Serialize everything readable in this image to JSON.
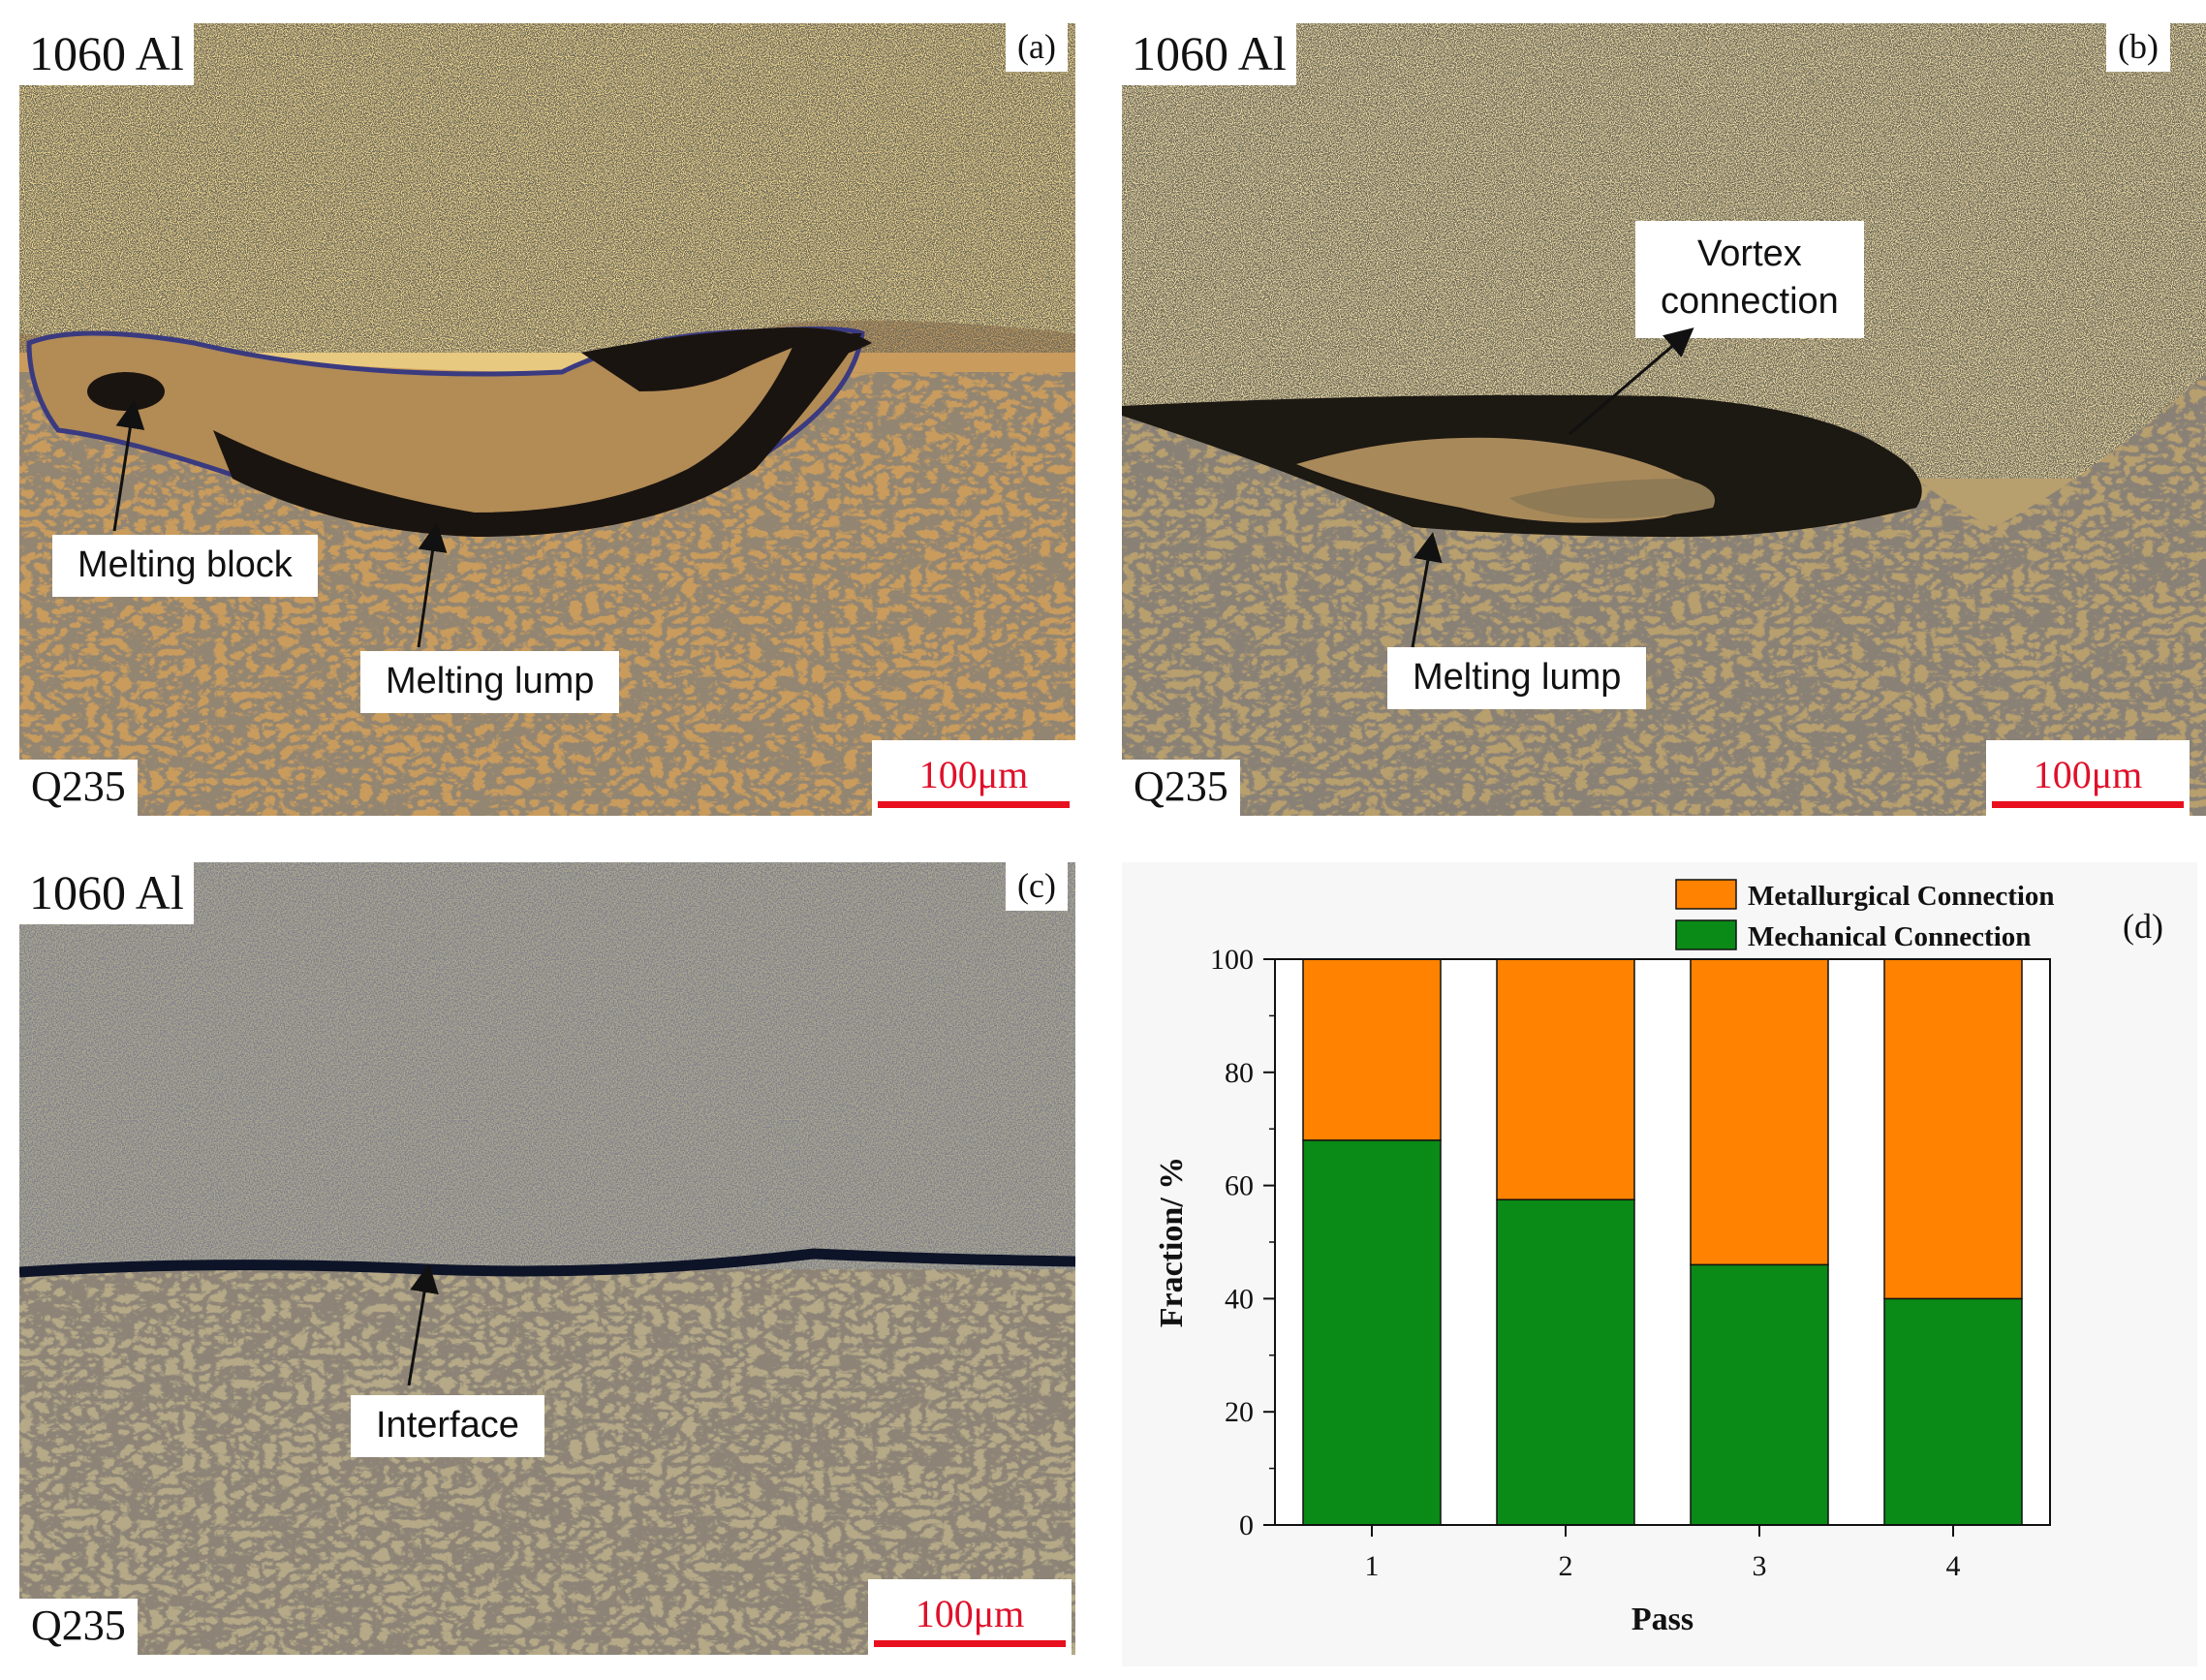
{
  "panels": {
    "a": {
      "letter": "(a)",
      "top_material": "1060 Al",
      "bottom_material": "Q235",
      "scale_bar": "100μm",
      "callouts": [
        "Melting block",
        "Melting lump"
      ]
    },
    "b": {
      "letter": "(b)",
      "top_material": "1060 Al",
      "bottom_material": "Q235",
      "scale_bar": "100μm",
      "callouts": [
        "Vortex",
        "connection",
        "Melting lump"
      ]
    },
    "c": {
      "letter": "(c)",
      "top_material": "1060 Al",
      "bottom_material": "Q235",
      "scale_bar": "100μm",
      "callouts": [
        "Interface"
      ]
    },
    "d": {
      "letter": "(d)"
    }
  },
  "colors": {
    "metallurgical": "#ff8200",
    "mechanical": "#0a8a16",
    "scale_bar": "#e8101e"
  },
  "chart_data": {
    "type": "bar",
    "stacked": true,
    "categories": [
      "1",
      "2",
      "3",
      "4"
    ],
    "series": [
      {
        "name": "Mechanical Connection",
        "values": [
          68,
          57.5,
          46,
          40
        ]
      },
      {
        "name": "Metallurgical Connection",
        "values": [
          32,
          42.5,
          54,
          60
        ]
      }
    ],
    "xlabel": "Pass",
    "ylabel": "Fraction/ %",
    "ylim": [
      0,
      100
    ],
    "yticks": [
      0,
      20,
      40,
      60,
      80,
      100
    ],
    "legend": "top",
    "grid": false
  }
}
